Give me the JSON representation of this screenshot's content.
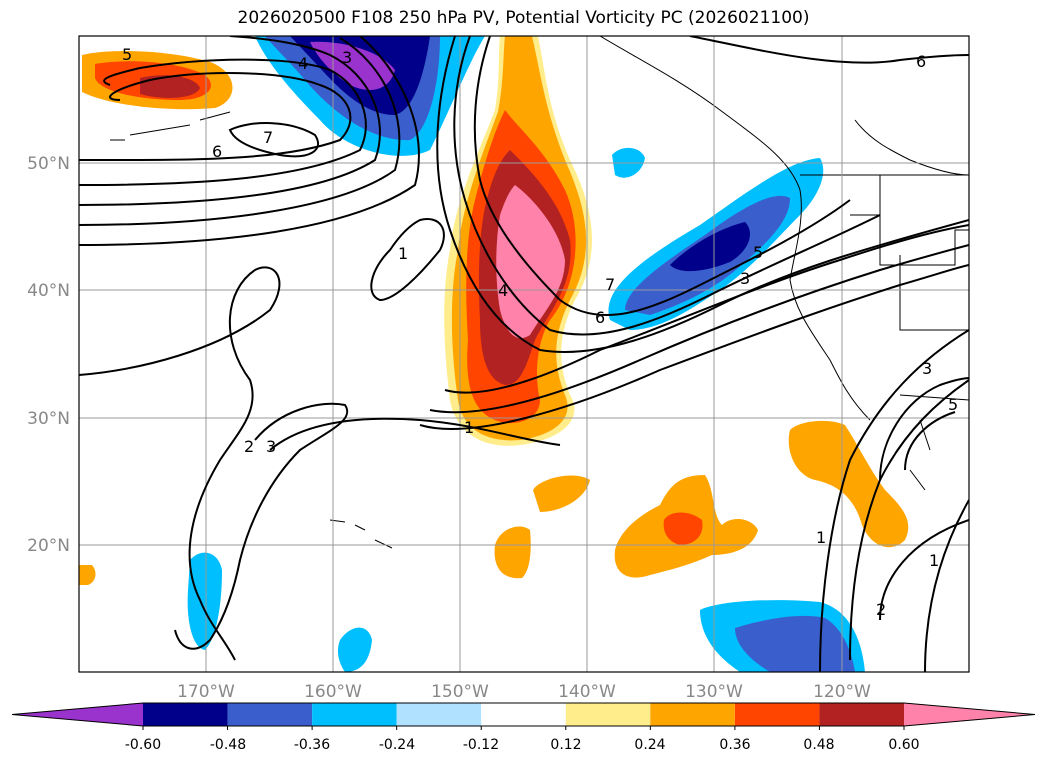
{
  "title": "2026020500 F108 250 hPa PV, Potential Vorticity PC (2026021100)",
  "map": {
    "lon_labels": [
      "170°W",
      "160°W",
      "150°W",
      "140°W",
      "130°W",
      "120°W"
    ],
    "lat_labels": [
      "50°N",
      "40°N",
      "30°N",
      "20°N"
    ],
    "grid": true
  },
  "colorbar": {
    "labels": [
      "-0.60",
      "-0.48",
      "-0.36",
      "-0.24",
      "-0.12",
      "0.12",
      "0.24",
      "0.36",
      "0.48",
      "0.60"
    ],
    "colors": [
      "#9a32cd",
      "#00008b",
      "#3a5fcd",
      "#00bfff",
      "#b0e2ff",
      "#ffffff",
      "#ffec8b",
      "#ffa500",
      "#ff4500",
      "#b22222",
      "#ff82ab"
    ],
    "extend": "both"
  },
  "contour_labels": [
    "5",
    "7",
    "6",
    "4",
    "3",
    "1",
    "4",
    "1",
    "2",
    "3",
    "5",
    "3",
    "6",
    "7",
    "6",
    "3",
    "5",
    "1",
    "1",
    "2"
  ]
}
